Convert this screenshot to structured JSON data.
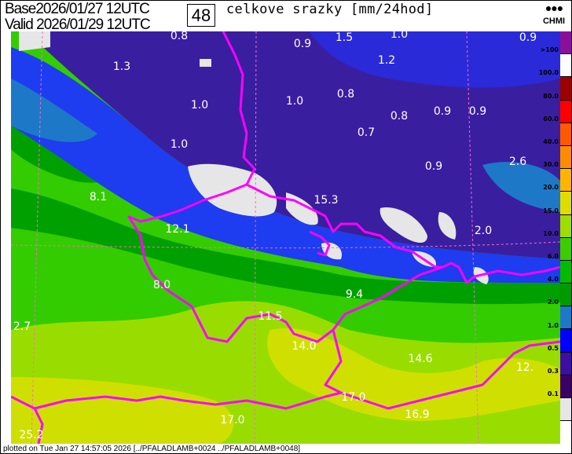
{
  "header": {
    "base_label": "Base",
    "base_value": "2026/01/27 12UTC",
    "valid_label": "Valid",
    "valid_value": "2026/01/29 12UTC",
    "forecast_hour": "48",
    "title": "celkove srazky [mm/24hod]",
    "logo_text": "CHMI"
  },
  "legend": {
    "labels": [
      ">100",
      "100.0",
      "80.0",
      "60.0",
      "40.0",
      "30.0",
      "20.0",
      "15.0",
      "10.0",
      "6.0",
      "4.0",
      "2.0",
      "1.0",
      "0.5",
      "0.3",
      "0.1"
    ],
    "colors": [
      "#8c0f9c",
      "#ffffff",
      "#9c0000",
      "#ff0000",
      "#ff5a00",
      "#ff8c00",
      "#ffb400",
      "#e0dc00",
      "#a0dc00",
      "#3ccc00",
      "#00bb00",
      "#009900",
      "#1e78c8",
      "#0000ff",
      "#3c0fa0",
      "#3c0064",
      "#e6e6e6"
    ]
  },
  "map_values": [
    "0.8",
    "1.5",
    "1.0",
    "0.9",
    "0.9",
    "1.3",
    "1.2",
    "1.0",
    "1.0",
    "0.8",
    "0.8",
    "0.9",
    "0.9",
    "1.0",
    "0.7",
    "0.9",
    "2.6",
    "8.1",
    "15.3",
    "12.1",
    "2.0",
    "8.0",
    "9.4",
    "11.5",
    "2.7",
    "14.0",
    "14.6",
    "12.",
    "17.0",
    "16.9",
    "17.0",
    "25.2"
  ],
  "footer": "plotted on Tue Jan 27 14:57:05 2026 [../PFALADLAMB+0024 ../PFALADLAMB+0048]"
}
